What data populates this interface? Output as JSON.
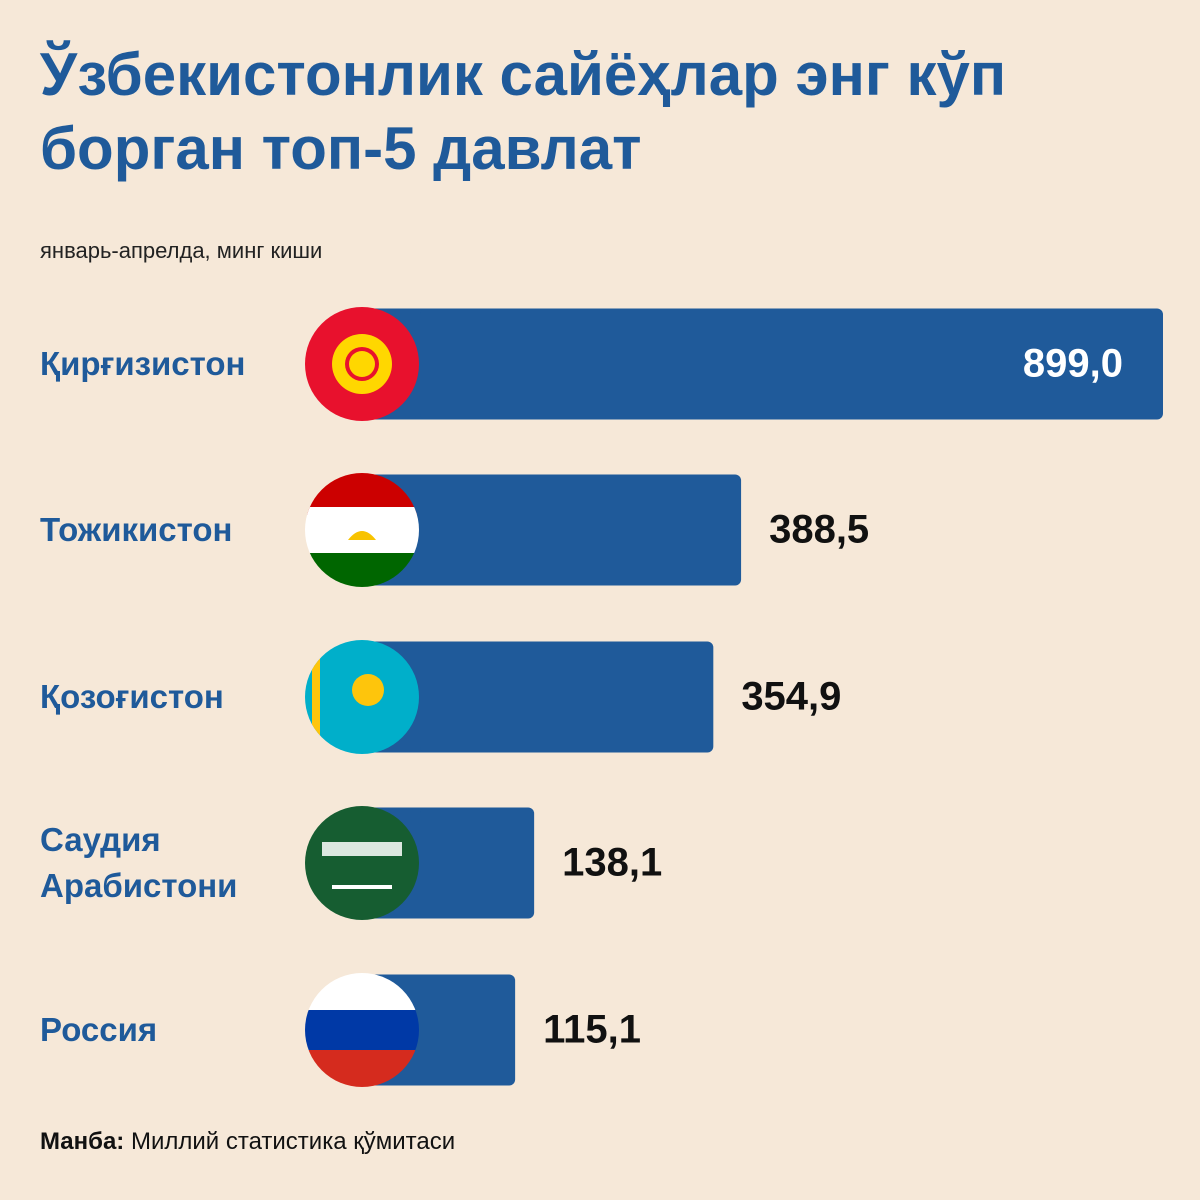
{
  "chart_data": {
    "type": "bar",
    "orientation": "horizontal",
    "title": "Ўзбекистонлик сайёҳлар энг кўп борган топ-5 давлат",
    "subtitle": "январь-апрелда, минг киши",
    "categories": [
      "Қирғизистон",
      "Тожикистон",
      "Қозоғистон",
      "Саудия Арабистони",
      "Россия"
    ],
    "values": [
      899.0,
      388.5,
      354.9,
      138.1,
      115.1
    ],
    "value_labels": [
      "899,0",
      "388,5",
      "354,9",
      "138,1",
      "115,1"
    ],
    "color": "#1f5a9a"
  },
  "source": {
    "label": "Манба:",
    "text": "Миллий статистика қўмитаси"
  }
}
